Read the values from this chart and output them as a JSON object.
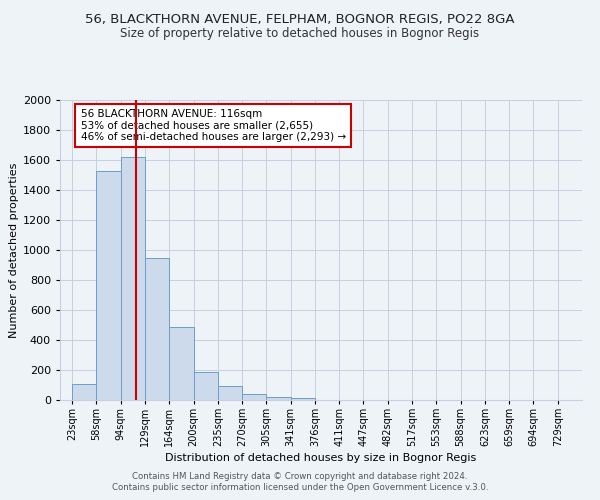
{
  "title": "56, BLACKTHORN AVENUE, FELPHAM, BOGNOR REGIS, PO22 8GA",
  "subtitle": "Size of property relative to detached houses in Bognor Regis",
  "xlabel": "Distribution of detached houses by size in Bognor Regis",
  "ylabel": "Number of detached properties",
  "bin_labels": [
    "23sqm",
    "58sqm",
    "94sqm",
    "129sqm",
    "164sqm",
    "200sqm",
    "235sqm",
    "270sqm",
    "305sqm",
    "341sqm",
    "376sqm",
    "411sqm",
    "447sqm",
    "482sqm",
    "517sqm",
    "553sqm",
    "588sqm",
    "623sqm",
    "659sqm",
    "694sqm",
    "729sqm"
  ],
  "bar_values": [
    110,
    1530,
    1620,
    950,
    490,
    185,
    95,
    38,
    22,
    13,
    0,
    0,
    0,
    0,
    0,
    0,
    0,
    0,
    0,
    0,
    0
  ],
  "bar_color": "#ccdaeb",
  "bar_edge_color": "#6a9fca",
  "background_color": "#eef3f8",
  "grid_color": "#c5cfe0",
  "red_line_x": 2.65,
  "annotation_text": "56 BLACKTHORN AVENUE: 116sqm\n53% of detached houses are smaller (2,655)\n46% of semi-detached houses are larger (2,293) →",
  "annotation_box_color": "#ffffff",
  "annotation_box_edge": "#cc0000",
  "footer_line1": "Contains HM Land Registry data © Crown copyright and database right 2024.",
  "footer_line2": "Contains public sector information licensed under the Open Government Licence v.3.0.",
  "ylim": [
    0,
    2000
  ],
  "title_fontsize": 9.5,
  "subtitle_fontsize": 8.5,
  "ylabel_fontsize": 8,
  "xlabel_fontsize": 8
}
